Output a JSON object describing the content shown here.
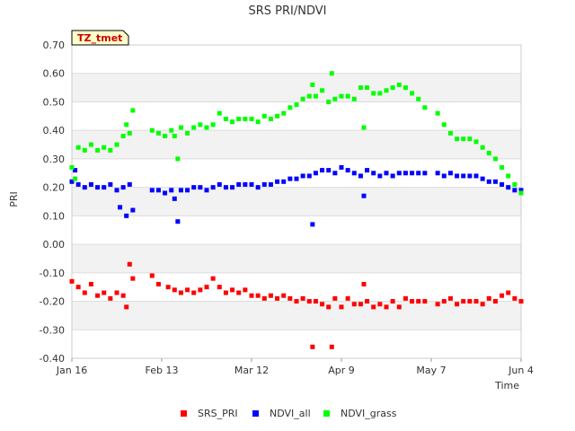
{
  "chart_data": {
    "type": "scatter",
    "title": "SRS PRI/NDVI",
    "xlabel": "Time",
    "ylabel": "PRI",
    "site_tag": "TZ_tmet",
    "ylim": [
      -0.4,
      0.7
    ],
    "xlim_days": [
      0,
      140
    ],
    "yticks": [
      {
        "v": 0.7,
        "label": "0.70"
      },
      {
        "v": 0.6,
        "label": "0.60"
      },
      {
        "v": 0.5,
        "label": "0.50"
      },
      {
        "v": 0.4,
        "label": "0.40"
      },
      {
        "v": 0.3,
        "label": "0.30"
      },
      {
        "v": 0.2,
        "label": "0.20"
      },
      {
        "v": 0.1,
        "label": "0.10"
      },
      {
        "v": 0.0,
        "label": "0.00"
      },
      {
        "v": -0.1,
        "label": "-0.10"
      },
      {
        "v": -0.2,
        "label": "-0.20"
      },
      {
        "v": -0.3,
        "label": "-0.30"
      },
      {
        "v": -0.4,
        "label": "-0.40"
      }
    ],
    "xticks": [
      {
        "day": 0,
        "label": "Jan 16"
      },
      {
        "day": 28,
        "label": "Feb 13"
      },
      {
        "day": 56,
        "label": "Mar 12"
      },
      {
        "day": 84,
        "label": "Apr 9"
      },
      {
        "day": 112,
        "label": "May 7"
      },
      {
        "day": 140,
        "label": "Jun 4"
      }
    ],
    "grid": true,
    "legend_position": "bottom",
    "series": [
      {
        "name": "SRS_PRI",
        "color": "#ff0000",
        "points": [
          [
            0,
            -0.13
          ],
          [
            2,
            -0.15
          ],
          [
            4,
            -0.17
          ],
          [
            6,
            -0.14
          ],
          [
            8,
            -0.18
          ],
          [
            10,
            -0.17
          ],
          [
            12,
            -0.19
          ],
          [
            14,
            -0.17
          ],
          [
            16,
            -0.18
          ],
          [
            17,
            -0.22
          ],
          [
            18,
            -0.07
          ],
          [
            19,
            -0.12
          ],
          [
            25,
            -0.11
          ],
          [
            27,
            -0.14
          ],
          [
            30,
            -0.15
          ],
          [
            32,
            -0.16
          ],
          [
            34,
            -0.17
          ],
          [
            36,
            -0.16
          ],
          [
            38,
            -0.17
          ],
          [
            40,
            -0.16
          ],
          [
            42,
            -0.15
          ],
          [
            44,
            -0.12
          ],
          [
            46,
            -0.15
          ],
          [
            48,
            -0.17
          ],
          [
            50,
            -0.16
          ],
          [
            52,
            -0.17
          ],
          [
            54,
            -0.16
          ],
          [
            56,
            -0.18
          ],
          [
            58,
            -0.18
          ],
          [
            60,
            -0.19
          ],
          [
            62,
            -0.18
          ],
          [
            64,
            -0.19
          ],
          [
            66,
            -0.18
          ],
          [
            68,
            -0.19
          ],
          [
            70,
            -0.2
          ],
          [
            72,
            -0.19
          ],
          [
            74,
            -0.2
          ],
          [
            75,
            -0.36
          ],
          [
            76,
            -0.2
          ],
          [
            78,
            -0.21
          ],
          [
            80,
            -0.22
          ],
          [
            81,
            -0.36
          ],
          [
            82,
            -0.19
          ],
          [
            84,
            -0.22
          ],
          [
            86,
            -0.19
          ],
          [
            88,
            -0.21
          ],
          [
            90,
            -0.21
          ],
          [
            91,
            -0.14
          ],
          [
            92,
            -0.2
          ],
          [
            94,
            -0.22
          ],
          [
            96,
            -0.21
          ],
          [
            98,
            -0.22
          ],
          [
            100,
            -0.2
          ],
          [
            102,
            -0.22
          ],
          [
            104,
            -0.19
          ],
          [
            106,
            -0.2
          ],
          [
            108,
            -0.2
          ],
          [
            110,
            -0.2
          ],
          [
            114,
            -0.21
          ],
          [
            116,
            -0.2
          ],
          [
            118,
            -0.19
          ],
          [
            120,
            -0.21
          ],
          [
            122,
            -0.2
          ],
          [
            124,
            -0.2
          ],
          [
            126,
            -0.2
          ],
          [
            128,
            -0.21
          ],
          [
            130,
            -0.19
          ],
          [
            132,
            -0.2
          ],
          [
            134,
            -0.18
          ],
          [
            136,
            -0.17
          ],
          [
            138,
            -0.19
          ],
          [
            140,
            -0.2
          ]
        ]
      },
      {
        "name": "NDVI_all",
        "color": "#0000ff",
        "points": [
          [
            0,
            0.22
          ],
          [
            1,
            0.26
          ],
          [
            2,
            0.21
          ],
          [
            4,
            0.2
          ],
          [
            6,
            0.21
          ],
          [
            8,
            0.2
          ],
          [
            10,
            0.2
          ],
          [
            12,
            0.21
          ],
          [
            14,
            0.19
          ],
          [
            15,
            0.13
          ],
          [
            16,
            0.2
          ],
          [
            17,
            0.1
          ],
          [
            18,
            0.21
          ],
          [
            19,
            0.12
          ],
          [
            25,
            0.19
          ],
          [
            27,
            0.19
          ],
          [
            29,
            0.18
          ],
          [
            31,
            0.19
          ],
          [
            32,
            0.16
          ],
          [
            33,
            0.08
          ],
          [
            34,
            0.19
          ],
          [
            36,
            0.19
          ],
          [
            38,
            0.2
          ],
          [
            40,
            0.2
          ],
          [
            42,
            0.19
          ],
          [
            44,
            0.2
          ],
          [
            46,
            0.21
          ],
          [
            48,
            0.2
          ],
          [
            50,
            0.2
          ],
          [
            52,
            0.21
          ],
          [
            54,
            0.21
          ],
          [
            56,
            0.21
          ],
          [
            58,
            0.2
          ],
          [
            60,
            0.21
          ],
          [
            62,
            0.21
          ],
          [
            64,
            0.22
          ],
          [
            66,
            0.22
          ],
          [
            68,
            0.23
          ],
          [
            70,
            0.23
          ],
          [
            72,
            0.24
          ],
          [
            74,
            0.24
          ],
          [
            75,
            0.07
          ],
          [
            76,
            0.25
          ],
          [
            78,
            0.26
          ],
          [
            80,
            0.26
          ],
          [
            82,
            0.25
          ],
          [
            84,
            0.27
          ],
          [
            86,
            0.26
          ],
          [
            88,
            0.25
          ],
          [
            90,
            0.24
          ],
          [
            91,
            0.17
          ],
          [
            92,
            0.26
          ],
          [
            94,
            0.25
          ],
          [
            96,
            0.24
          ],
          [
            98,
            0.25
          ],
          [
            100,
            0.24
          ],
          [
            102,
            0.25
          ],
          [
            104,
            0.25
          ],
          [
            106,
            0.25
          ],
          [
            108,
            0.25
          ],
          [
            110,
            0.25
          ],
          [
            114,
            0.25
          ],
          [
            116,
            0.24
          ],
          [
            118,
            0.25
          ],
          [
            120,
            0.24
          ],
          [
            122,
            0.24
          ],
          [
            124,
            0.24
          ],
          [
            126,
            0.24
          ],
          [
            128,
            0.23
          ],
          [
            130,
            0.22
          ],
          [
            132,
            0.22
          ],
          [
            134,
            0.21
          ],
          [
            136,
            0.2
          ],
          [
            138,
            0.19
          ],
          [
            140,
            0.19
          ]
        ]
      },
      {
        "name": "NDVI_grass",
        "color": "#00ff00",
        "points": [
          [
            0,
            0.27
          ],
          [
            1,
            0.23
          ],
          [
            2,
            0.34
          ],
          [
            4,
            0.33
          ],
          [
            6,
            0.35
          ],
          [
            8,
            0.33
          ],
          [
            10,
            0.34
          ],
          [
            12,
            0.33
          ],
          [
            14,
            0.35
          ],
          [
            16,
            0.38
          ],
          [
            17,
            0.42
          ],
          [
            18,
            0.39
          ],
          [
            19,
            0.47
          ],
          [
            25,
            0.4
          ],
          [
            27,
            0.39
          ],
          [
            29,
            0.38
          ],
          [
            31,
            0.4
          ],
          [
            32,
            0.38
          ],
          [
            33,
            0.3
          ],
          [
            34,
            0.41
          ],
          [
            36,
            0.39
          ],
          [
            38,
            0.41
          ],
          [
            40,
            0.42
          ],
          [
            42,
            0.41
          ],
          [
            44,
            0.42
          ],
          [
            46,
            0.46
          ],
          [
            48,
            0.44
          ],
          [
            50,
            0.43
          ],
          [
            52,
            0.44
          ],
          [
            54,
            0.44
          ],
          [
            56,
            0.44
          ],
          [
            58,
            0.43
          ],
          [
            60,
            0.45
          ],
          [
            62,
            0.44
          ],
          [
            64,
            0.45
          ],
          [
            66,
            0.46
          ],
          [
            68,
            0.48
          ],
          [
            70,
            0.49
          ],
          [
            72,
            0.51
          ],
          [
            74,
            0.52
          ],
          [
            75,
            0.56
          ],
          [
            76,
            0.52
          ],
          [
            78,
            0.54
          ],
          [
            80,
            0.5
          ],
          [
            81,
            0.6
          ],
          [
            82,
            0.51
          ],
          [
            84,
            0.52
          ],
          [
            86,
            0.52
          ],
          [
            88,
            0.51
          ],
          [
            90,
            0.55
          ],
          [
            91,
            0.41
          ],
          [
            92,
            0.55
          ],
          [
            94,
            0.53
          ],
          [
            96,
            0.53
          ],
          [
            98,
            0.54
          ],
          [
            100,
            0.55
          ],
          [
            102,
            0.56
          ],
          [
            104,
            0.55
          ],
          [
            106,
            0.53
          ],
          [
            108,
            0.51
          ],
          [
            110,
            0.48
          ],
          [
            114,
            0.46
          ],
          [
            116,
            0.42
          ],
          [
            118,
            0.39
          ],
          [
            120,
            0.37
          ],
          [
            122,
            0.37
          ],
          [
            124,
            0.37
          ],
          [
            126,
            0.36
          ],
          [
            128,
            0.34
          ],
          [
            130,
            0.32
          ],
          [
            132,
            0.3
          ],
          [
            134,
            0.27
          ],
          [
            136,
            0.24
          ],
          [
            138,
            0.21
          ],
          [
            140,
            0.18
          ]
        ]
      }
    ]
  }
}
